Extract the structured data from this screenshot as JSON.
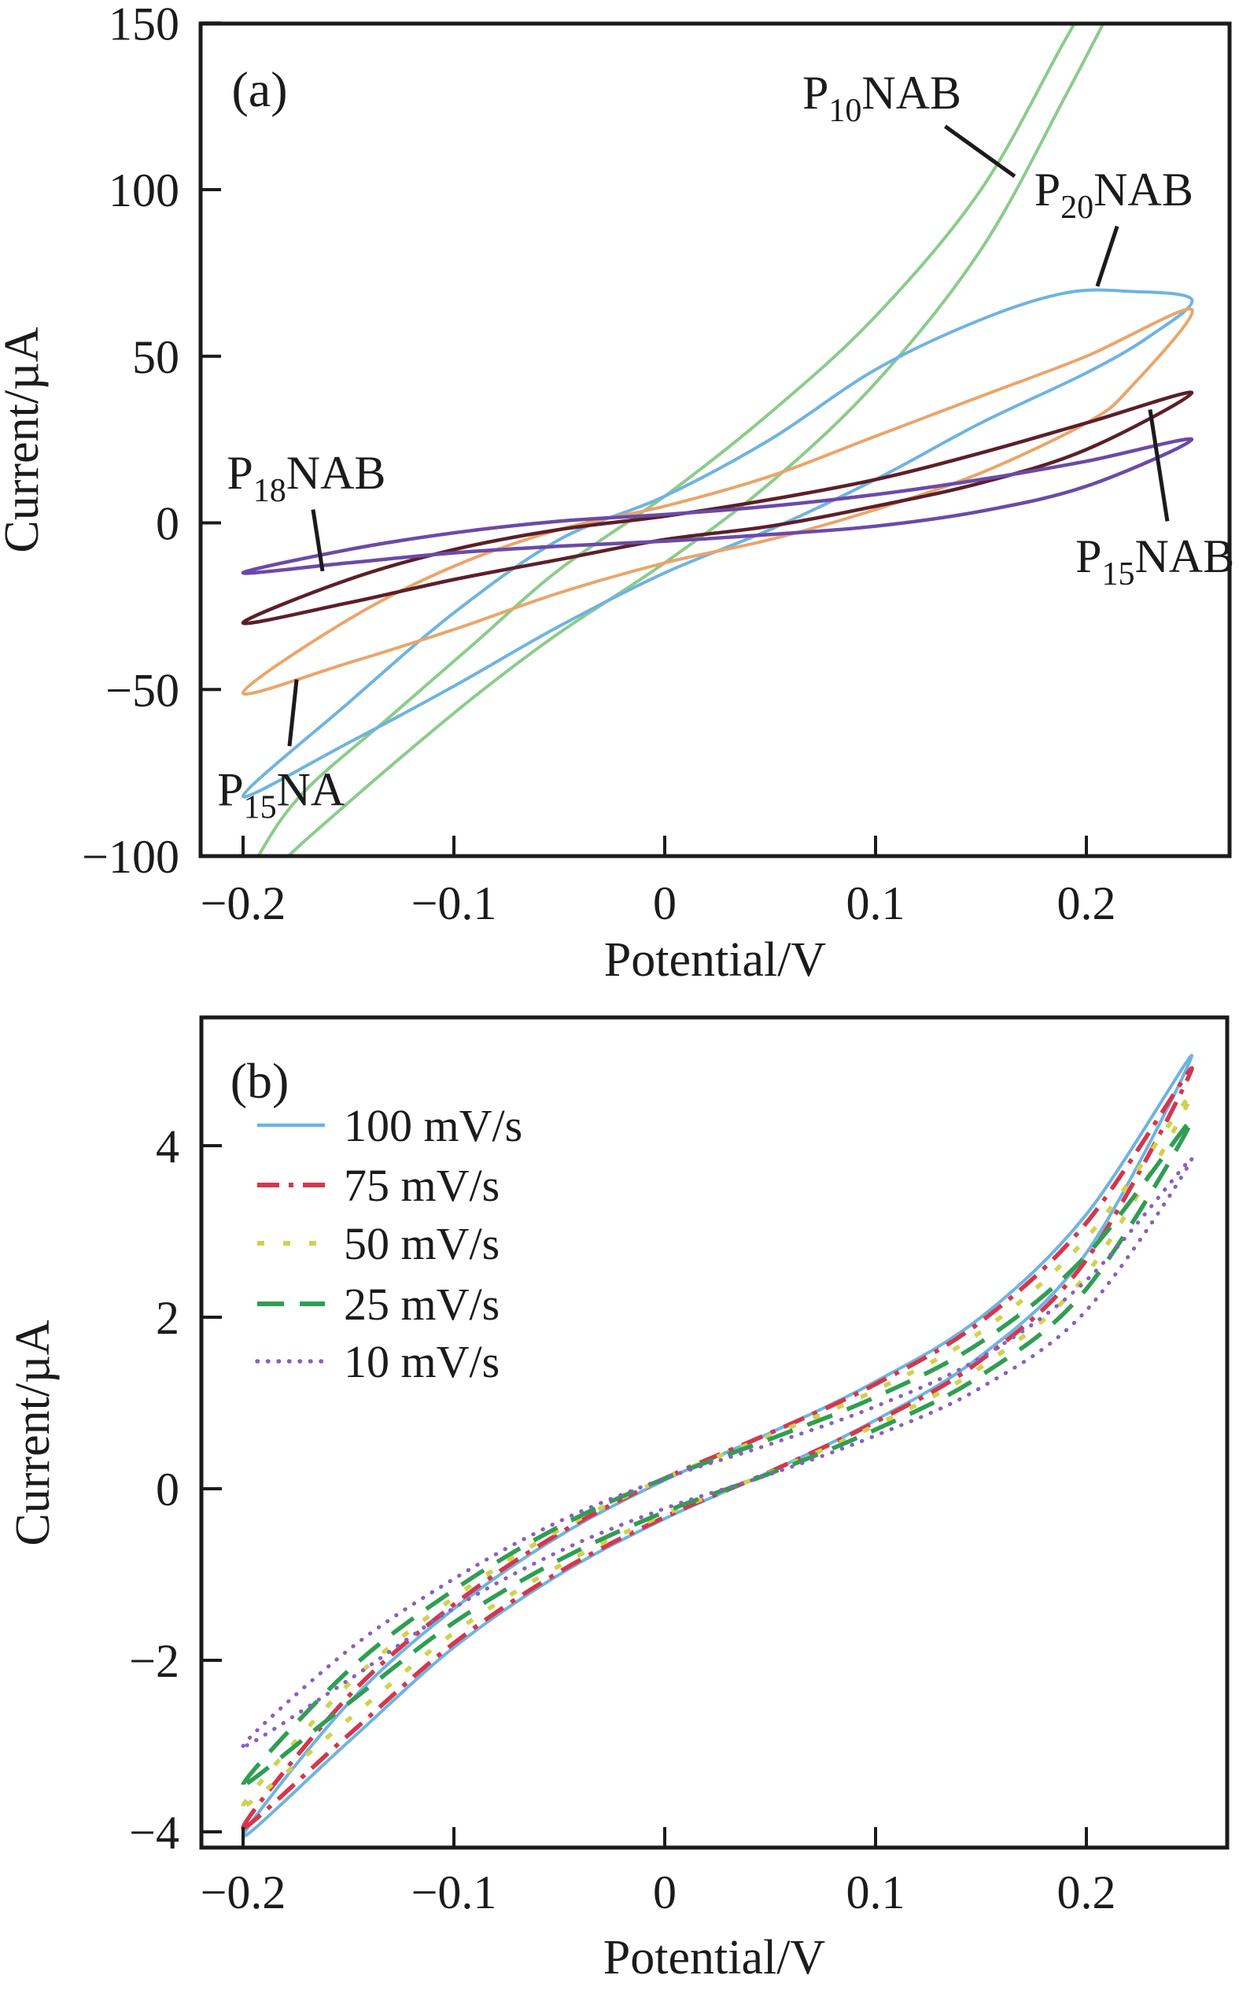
{
  "page": {
    "background": "#ffffff"
  },
  "chart_data": [
    {
      "id": "a",
      "type": "line",
      "panel_label": "(a)",
      "xlabel": "Potential/V",
      "ylabel": "Current/µA",
      "xlim": [
        -0.22,
        0.268
      ],
      "ylim": [
        -100,
        150
      ],
      "grid": false,
      "x_ticks": [
        -0.2,
        -0.1,
        0,
        0.1,
        0.2
      ],
      "x_tick_labels": [
        "−0.2",
        "−0.1",
        "0",
        "0.1",
        "0.2"
      ],
      "y_ticks": [
        150,
        100,
        50,
        0,
        -50,
        -100
      ],
      "y_tick_labels": [
        "150",
        "100",
        "50",
        "0",
        "−50",
        "−100"
      ],
      "series": [
        {
          "name": "P10NAB",
          "label_pre": "P",
          "label_sub": "10",
          "label_post": "NAB",
          "color": "#8bcc8b",
          "dash": "",
          "width": 4,
          "upper": [
            [
              -0.2,
              -112
            ],
            [
              -0.19,
              -97
            ],
            [
              -0.17,
              -80
            ],
            [
              -0.13,
              -58
            ],
            [
              -0.09,
              -36
            ],
            [
              -0.05,
              -14
            ],
            [
              0,
              8
            ],
            [
              0.05,
              33
            ],
            [
              0.1,
              62
            ],
            [
              0.15,
              100
            ],
            [
              0.19,
              145
            ],
            [
              0.22,
              178
            ],
            [
              0.25,
              205
            ]
          ],
          "lower": [
            [
              -0.2,
              -112
            ],
            [
              -0.17,
              -95
            ],
            [
              -0.13,
              -73
            ],
            [
              -0.09,
              -52
            ],
            [
              -0.05,
              -33
            ],
            [
              0,
              -12
            ],
            [
              0.05,
              12
            ],
            [
              0.1,
              42
            ],
            [
              0.15,
              82
            ],
            [
              0.19,
              128
            ],
            [
              0.22,
              165
            ],
            [
              0.25,
              205
            ]
          ]
        },
        {
          "name": "P20NAB",
          "label_pre": "P",
          "label_sub": "20",
          "label_post": "NAB",
          "color": "#6fb3e1",
          "dash": "",
          "width": 4,
          "upper": [
            [
              -0.2,
              -82
            ],
            [
              -0.15,
              -54
            ],
            [
              -0.1,
              -27
            ],
            [
              -0.05,
              -5
            ],
            [
              0,
              8
            ],
            [
              0.05,
              25
            ],
            [
              0.1,
              46
            ],
            [
              0.15,
              61
            ],
            [
              0.19,
              69
            ],
            [
              0.22,
              69.5
            ],
            [
              0.25,
              67
            ]
          ],
          "lower": [
            [
              -0.2,
              -82
            ],
            [
              -0.15,
              -66
            ],
            [
              -0.1,
              -49
            ],
            [
              -0.05,
              -31
            ],
            [
              0,
              -15
            ],
            [
              0.05,
              -2
            ],
            [
              0.1,
              13
            ],
            [
              0.15,
              30
            ],
            [
              0.2,
              45
            ],
            [
              0.23,
              56
            ],
            [
              0.25,
              67
            ]
          ]
        },
        {
          "name": "P15NA",
          "label_pre": "P",
          "label_sub": "15",
          "label_post": "NA",
          "color": "#eaa56b",
          "dash": "",
          "width": 4,
          "upper": [
            [
              -0.2,
              -51
            ],
            [
              -0.15,
              -29
            ],
            [
              -0.1,
              -13
            ],
            [
              -0.05,
              -2
            ],
            [
              0,
              5
            ],
            [
              0.05,
              14
            ],
            [
              0.1,
              26
            ],
            [
              0.15,
              38
            ],
            [
              0.2,
              50
            ],
            [
              0.25,
              64
            ]
          ],
          "lower": [
            [
              -0.2,
              -51
            ],
            [
              -0.15,
              -42
            ],
            [
              -0.1,
              -32
            ],
            [
              -0.05,
              -21
            ],
            [
              0,
              -12
            ],
            [
              0.05,
              -5
            ],
            [
              0.1,
              4
            ],
            [
              0.15,
              15
            ],
            [
              0.2,
              30
            ],
            [
              0.22,
              40
            ],
            [
              0.25,
              64
            ]
          ]
        },
        {
          "name": "P15NAB",
          "label_pre": "P",
          "label_sub": "15",
          "label_post": "NAB",
          "color": "#5c1f28",
          "dash": "",
          "width": 4.5,
          "upper": [
            [
              -0.2,
              -30
            ],
            [
              -0.15,
              -17
            ],
            [
              -0.1,
              -8
            ],
            [
              -0.05,
              -2
            ],
            [
              0,
              2
            ],
            [
              0.05,
              7
            ],
            [
              0.1,
              13
            ],
            [
              0.15,
              21
            ],
            [
              0.2,
              30
            ],
            [
              0.25,
              39
            ]
          ],
          "lower": [
            [
              -0.2,
              -30
            ],
            [
              -0.15,
              -24
            ],
            [
              -0.1,
              -17
            ],
            [
              -0.05,
              -11
            ],
            [
              0,
              -5
            ],
            [
              0.05,
              -1
            ],
            [
              0.1,
              5
            ],
            [
              0.15,
              12
            ],
            [
              0.2,
              22
            ],
            [
              0.25,
              39
            ]
          ]
        },
        {
          "name": "P18NAB",
          "label_pre": "P",
          "label_sub": "18",
          "label_post": "NAB",
          "color": "#6b4aa8",
          "dash": "",
          "width": 4.5,
          "upper": [
            [
              -0.2,
              -15
            ],
            [
              -0.15,
              -8
            ],
            [
              -0.1,
              -3
            ],
            [
              -0.05,
              0.5
            ],
            [
              0,
              2.5
            ],
            [
              0.05,
              5
            ],
            [
              0.1,
              8.5
            ],
            [
              0.15,
              13
            ],
            [
              0.2,
              18.5
            ],
            [
              0.25,
              25
            ]
          ],
          "lower": [
            [
              -0.2,
              -15
            ],
            [
              -0.15,
              -12
            ],
            [
              -0.1,
              -9
            ],
            [
              -0.05,
              -7
            ],
            [
              0,
              -5.5
            ],
            [
              0.05,
              -3.5
            ],
            [
              0.1,
              -1
            ],
            [
              0.15,
              3.5
            ],
            [
              0.2,
              11
            ],
            [
              0.25,
              25
            ]
          ]
        }
      ],
      "annotations": [
        {
          "series": "P10NAB",
          "pre": "P",
          "sub": "10",
          "post": "NAB",
          "x": 0.103,
          "y": 129,
          "pointer": [
            0.133,
            119,
            0.166,
            104
          ]
        },
        {
          "series": "P20NAB",
          "pre": "P",
          "sub": "20",
          "post": "NAB",
          "x": 0.213,
          "y": 100,
          "pointer": [
            0.2146,
            89,
            0.2052,
            71
          ]
        },
        {
          "series": "P18NAB",
          "pre": "P",
          "sub": "18",
          "post": "NAB",
          "x": -0.17,
          "y": 15,
          "pointer": [
            -0.1668,
            4,
            -0.1623,
            -14.5
          ]
        },
        {
          "series": "P15NA",
          "pre": "P",
          "sub": "15",
          "post": "NA",
          "x": -0.182,
          "y": -80,
          "pointer": [
            -0.178,
            -67,
            -0.1746,
            -47
          ]
        },
        {
          "series": "P15NAB",
          "pre": "P",
          "sub": "15",
          "post": "NAB",
          "x": 0.2325,
          "y": -10,
          "pointer": [
            0.2302,
            34,
            0.2384,
            0.5
          ]
        }
      ]
    },
    {
      "id": "b",
      "type": "line",
      "panel_label": "(b)",
      "xlabel": "Potential/V",
      "ylabel": "Current/µA",
      "xlim": [
        -0.22,
        0.268
      ],
      "ylim": [
        -4.18,
        5.5
      ],
      "grid": false,
      "x_ticks": [
        -0.2,
        -0.1,
        0,
        0.1,
        0.2
      ],
      "x_tick_labels": [
        "−0.2",
        "−0.1",
        "0",
        "0.1",
        "0.2"
      ],
      "y_ticks": [
        4,
        2,
        0,
        -2,
        -4
      ],
      "y_tick_labels": [
        "4",
        "2",
        "0",
        "−2",
        "−4"
      ],
      "legend_position": "upper-left",
      "series": [
        {
          "name": "100 mV/s",
          "color": "#6fb3e1",
          "dash": "",
          "width": 4,
          "linecap": "butt",
          "upper": [
            [
              -0.2,
              -4.05
            ],
            [
              -0.15,
              -2.5
            ],
            [
              -0.1,
              -1.4
            ],
            [
              -0.05,
              -0.55
            ],
            [
              0,
              0.1
            ],
            [
              0.05,
              0.65
            ],
            [
              0.1,
              1.25
            ],
            [
              0.15,
              2.0
            ],
            [
              0.2,
              3.2
            ],
            [
              0.25,
              5.05
            ]
          ],
          "lower": [
            [
              -0.2,
              -4.05
            ],
            [
              -0.15,
              -2.95
            ],
            [
              -0.1,
              -1.85
            ],
            [
              -0.05,
              -1.0
            ],
            [
              0,
              -0.35
            ],
            [
              0.05,
              0.2
            ],
            [
              0.1,
              0.8
            ],
            [
              0.15,
              1.55
            ],
            [
              0.2,
              2.75
            ],
            [
              0.25,
              5.05
            ]
          ]
        },
        {
          "name": "75 mV/s",
          "color": "#d4374d",
          "dash": "28 12 6 12",
          "width": 5.5,
          "linecap": "butt",
          "upper": [
            [
              -0.2,
              -3.95
            ],
            [
              -0.15,
              -2.42
            ],
            [
              -0.1,
              -1.35
            ],
            [
              -0.05,
              -0.52
            ],
            [
              0,
              0.12
            ],
            [
              0.05,
              0.65
            ],
            [
              0.1,
              1.22
            ],
            [
              0.15,
              1.95
            ],
            [
              0.2,
              3.1
            ],
            [
              0.25,
              4.9
            ]
          ],
          "lower": [
            [
              -0.2,
              -3.95
            ],
            [
              -0.15,
              -2.87
            ],
            [
              -0.1,
              -1.8
            ],
            [
              -0.05,
              -0.97
            ],
            [
              0,
              -0.33
            ],
            [
              0.05,
              0.2
            ],
            [
              0.1,
              0.78
            ],
            [
              0.15,
              1.5
            ],
            [
              0.2,
              2.67
            ],
            [
              0.25,
              4.9
            ]
          ]
        },
        {
          "name": "50 mV/s",
          "color": "#cfd24e",
          "dash": "9 24",
          "width": 5.5,
          "linecap": "butt",
          "upper": [
            [
              -0.2,
              -3.7
            ],
            [
              -0.15,
              -2.28
            ],
            [
              -0.1,
              -1.27
            ],
            [
              -0.05,
              -0.48
            ],
            [
              0,
              0.12
            ],
            [
              0.05,
              0.62
            ],
            [
              0.1,
              1.15
            ],
            [
              0.15,
              1.83
            ],
            [
              0.2,
              2.92
            ],
            [
              0.25,
              4.6
            ]
          ],
          "lower": [
            [
              -0.2,
              -3.7
            ],
            [
              -0.15,
              -2.69
            ],
            [
              -0.1,
              -1.68
            ],
            [
              -0.05,
              -0.9
            ],
            [
              0,
              -0.3
            ],
            [
              0.05,
              0.19
            ],
            [
              0.1,
              0.74
            ],
            [
              0.15,
              1.42
            ],
            [
              0.2,
              2.5
            ],
            [
              0.25,
              4.6
            ]
          ]
        },
        {
          "name": "25 mV/s",
          "color": "#2f9e52",
          "dash": "34 20",
          "width": 5.5,
          "linecap": "butt",
          "upper": [
            [
              -0.2,
              -3.45
            ],
            [
              -0.15,
              -2.12
            ],
            [
              -0.1,
              -1.18
            ],
            [
              -0.05,
              -0.44
            ],
            [
              0,
              0.12
            ],
            [
              0.05,
              0.58
            ],
            [
              0.1,
              1.07
            ],
            [
              0.15,
              1.71
            ],
            [
              0.2,
              2.72
            ],
            [
              0.25,
              4.3
            ]
          ],
          "lower": [
            [
              -0.2,
              -3.45
            ],
            [
              -0.15,
              -2.5
            ],
            [
              -0.1,
              -1.56
            ],
            [
              -0.05,
              -0.83
            ],
            [
              0,
              -0.27
            ],
            [
              0.05,
              0.18
            ],
            [
              0.1,
              0.69
            ],
            [
              0.15,
              1.32
            ],
            [
              0.2,
              2.33
            ],
            [
              0.25,
              4.3
            ]
          ]
        },
        {
          "name": "10 mV/s",
          "color": "#8a5fc0",
          "dash": "0.5 13",
          "width": 5,
          "linecap": "round",
          "upper": [
            [
              -0.2,
              -3.0
            ],
            [
              -0.15,
              -1.88
            ],
            [
              -0.1,
              -1.05
            ],
            [
              -0.05,
              -0.38
            ],
            [
              0,
              0.12
            ],
            [
              0.05,
              0.52
            ],
            [
              0.1,
              0.96
            ],
            [
              0.15,
              1.53
            ],
            [
              0.2,
              2.43
            ],
            [
              0.25,
              3.85
            ]
          ],
          "lower": [
            [
              -0.2,
              -3.0
            ],
            [
              -0.15,
              -2.23
            ],
            [
              -0.1,
              -1.39
            ],
            [
              -0.05,
              -0.73
            ],
            [
              0,
              -0.23
            ],
            [
              0.05,
              0.17
            ],
            [
              0.1,
              0.62
            ],
            [
              0.15,
              1.18
            ],
            [
              0.2,
              2.08
            ],
            [
              0.25,
              3.85
            ]
          ]
        }
      ],
      "legend": [
        {
          "label": "100 mV/s"
        },
        {
          "label": "75 mV/s"
        },
        {
          "label": "50 mV/s"
        },
        {
          "label": "25 mV/s"
        },
        {
          "label": "10 mV/s"
        }
      ]
    }
  ]
}
